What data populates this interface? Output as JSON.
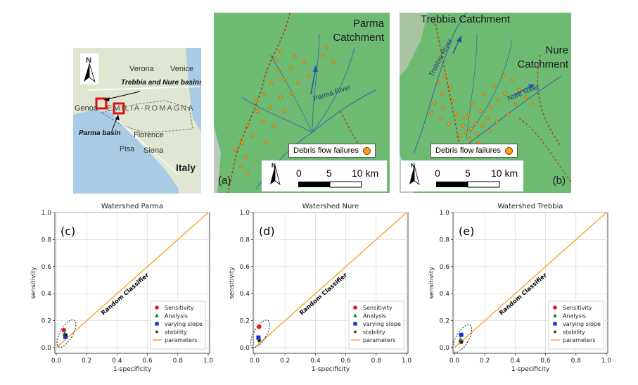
{
  "inset_map": {
    "labels": {
      "north": "N",
      "verona": "Verona",
      "venice": "Venice",
      "trebbia_nure": "Trebbia and  Nure basins",
      "genoa": "Genoa",
      "region": "EMILIA-ROMAGNA",
      "parma": "Parma basin",
      "florence": "Florence",
      "pisa": "Pisa",
      "siena": "Siena",
      "italy": "Italy"
    },
    "colors": {
      "highlight_box": "#e01010",
      "land": "#dfe6d2",
      "sea": "#a9cbe6"
    }
  },
  "map_a": {
    "title_line1": "Parma",
    "title_line2": "Catchment",
    "river": "Parma River",
    "legend": "Debris flow failures",
    "scale": {
      "north": "N",
      "t0": "0",
      "t1": "5",
      "t2": "10 km"
    },
    "letter": "(a)"
  },
  "map_b": {
    "title_trebbia": "Trebbia Catchment",
    "title_nure_line1": "Nure",
    "title_nure_line2": "Catchment",
    "river_trebbia": "Trebbia River",
    "river_nure": "Nure River",
    "legend": "Debris flow failures",
    "scale": {
      "north": "N",
      "t0": "0",
      "t1": "5",
      "t2": "10 km"
    },
    "letter": "(b)"
  },
  "legend_labels": {
    "sensitivity": "Sensitivity",
    "analysis": "Analysis",
    "varying_slope": "varying slope",
    "stability": "stability",
    "parameters": "parameters",
    "random_classifier": "Random Classifier"
  },
  "colors": {
    "sensitivity": "#e8141a",
    "analysis": "#1a8a1f",
    "varying_slope": "#1b2ee0",
    "stability": "#111111",
    "random_line": "#f5a623",
    "debris_dot": "#f7a21b"
  },
  "chart_data": [
    {
      "type": "scatter",
      "panel": "(c)",
      "title": "Watershed Parma",
      "xlabel": "1-specificity",
      "ylabel": "sensitivity",
      "xlim": [
        0,
        1
      ],
      "ylim": [
        0,
        1
      ],
      "ticks": [
        "0.0",
        "0.2",
        "0.4",
        "0.6",
        "0.8",
        "1.0"
      ],
      "grid": true,
      "legend_position": "lower-right",
      "reference_line": {
        "name": "Random Classifier",
        "x": [
          0,
          1
        ],
        "y": [
          0,
          1
        ]
      },
      "points": [
        {
          "label": "Sensitivity",
          "x": 0.05,
          "y": 0.13
        },
        {
          "label": "Analysis",
          "x": 0.055,
          "y": 0.105
        },
        {
          "label": "varying slope",
          "x": 0.06,
          "y": 0.08
        },
        {
          "label": "stability",
          "x": 0.065,
          "y": 0.095
        }
      ]
    },
    {
      "type": "scatter",
      "panel": "(d)",
      "title": "Watershed Nure",
      "xlabel": "1-specificity",
      "ylabel": "sensitivity",
      "xlim": [
        0,
        1
      ],
      "ylim": [
        0,
        1
      ],
      "ticks": [
        "0.0",
        "0.2",
        "0.4",
        "0.6",
        "0.8",
        "1.0"
      ],
      "grid": true,
      "legend_position": "lower-right",
      "reference_line": {
        "name": "Random Classifier",
        "x": [
          0,
          1
        ],
        "y": [
          0,
          1
        ]
      },
      "points": [
        {
          "label": "Sensitivity",
          "x": 0.03,
          "y": 0.155
        },
        {
          "label": "Analysis",
          "x": 0.03,
          "y": 0.065
        },
        {
          "label": "varying slope",
          "x": 0.025,
          "y": 0.075
        },
        {
          "label": "stability",
          "x": 0.03,
          "y": 0.05
        }
      ]
    },
    {
      "type": "scatter",
      "panel": "(e)",
      "title": "Watershed Trebbia",
      "xlabel": "1-specificity",
      "ylabel": "sensitivity",
      "xlim": [
        0,
        1
      ],
      "ylim": [
        0,
        1
      ],
      "ticks": [
        "0.0",
        "0.2",
        "0.4",
        "0.6",
        "0.8",
        "1.0"
      ],
      "grid": true,
      "legend_position": "lower-right",
      "reference_line": {
        "name": "Random Classifier",
        "x": [
          0,
          1
        ],
        "y": [
          0,
          1
        ]
      },
      "points": [
        {
          "label": "Sensitivity",
          "x": 0.045,
          "y": 0.045
        },
        {
          "label": "Analysis",
          "x": 0.04,
          "y": 0.06
        },
        {
          "label": "varying slope",
          "x": 0.045,
          "y": 0.095
        },
        {
          "label": "stability",
          "x": 0.045,
          "y": 0.04
        }
      ]
    }
  ]
}
